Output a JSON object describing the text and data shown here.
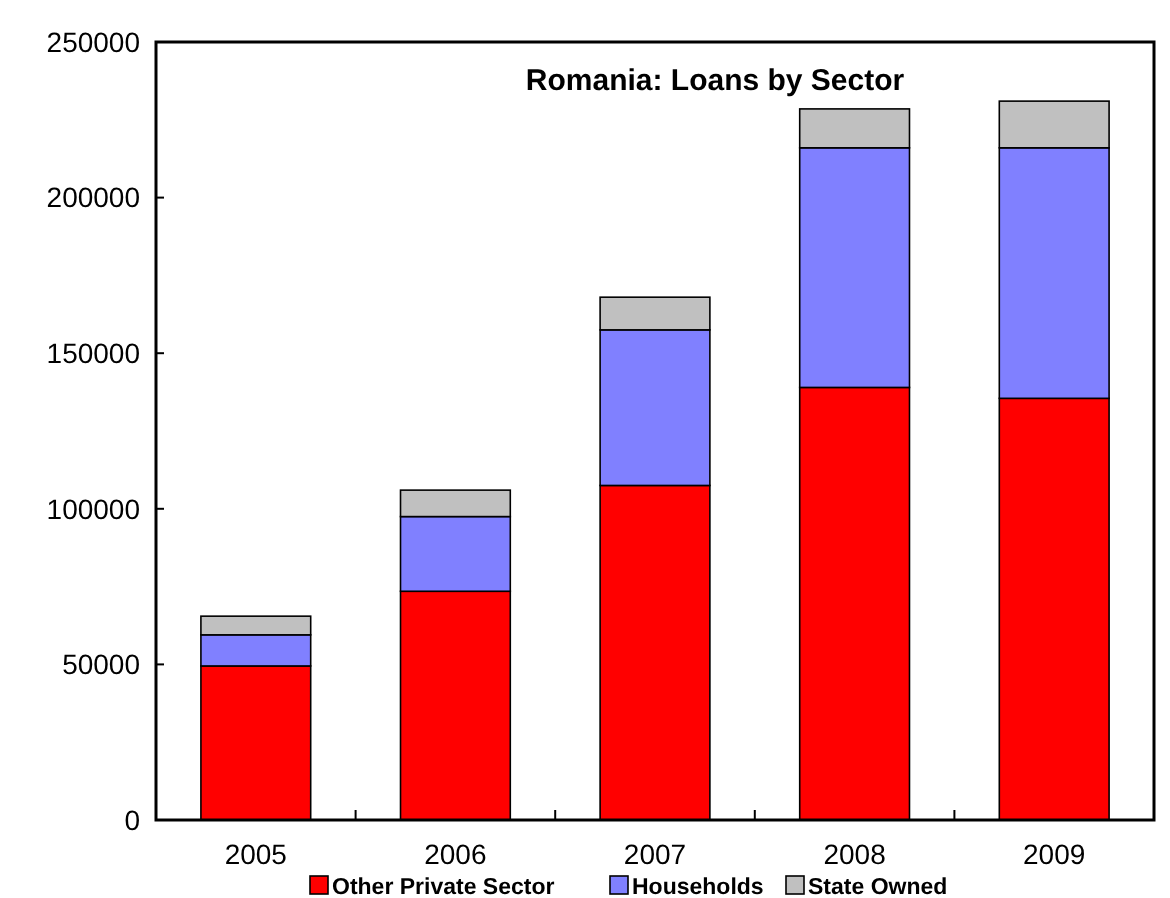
{
  "chart_data": {
    "type": "bar",
    "title": "Romania: Loans by Sector",
    "categories": [
      "2005",
      "2006",
      "2007",
      "2008",
      "2009"
    ],
    "stacked": true,
    "series": [
      {
        "name": "Other Private Sector",
        "color": "#ff0000",
        "values": [
          49500,
          73500,
          107500,
          139000,
          135500
        ]
      },
      {
        "name": "Households",
        "color": "#8080ff",
        "values": [
          10000,
          24000,
          50000,
          77000,
          80500
        ]
      },
      {
        "name": "State Owned",
        "color": "#c0c0c0",
        "values": [
          6000,
          8500,
          10500,
          12500,
          15000
        ]
      }
    ],
    "ylim": [
      0,
      250000
    ],
    "yticks": [
      0,
      50000,
      100000,
      150000,
      200000,
      250000
    ],
    "grid": false,
    "legend": "bottom"
  }
}
